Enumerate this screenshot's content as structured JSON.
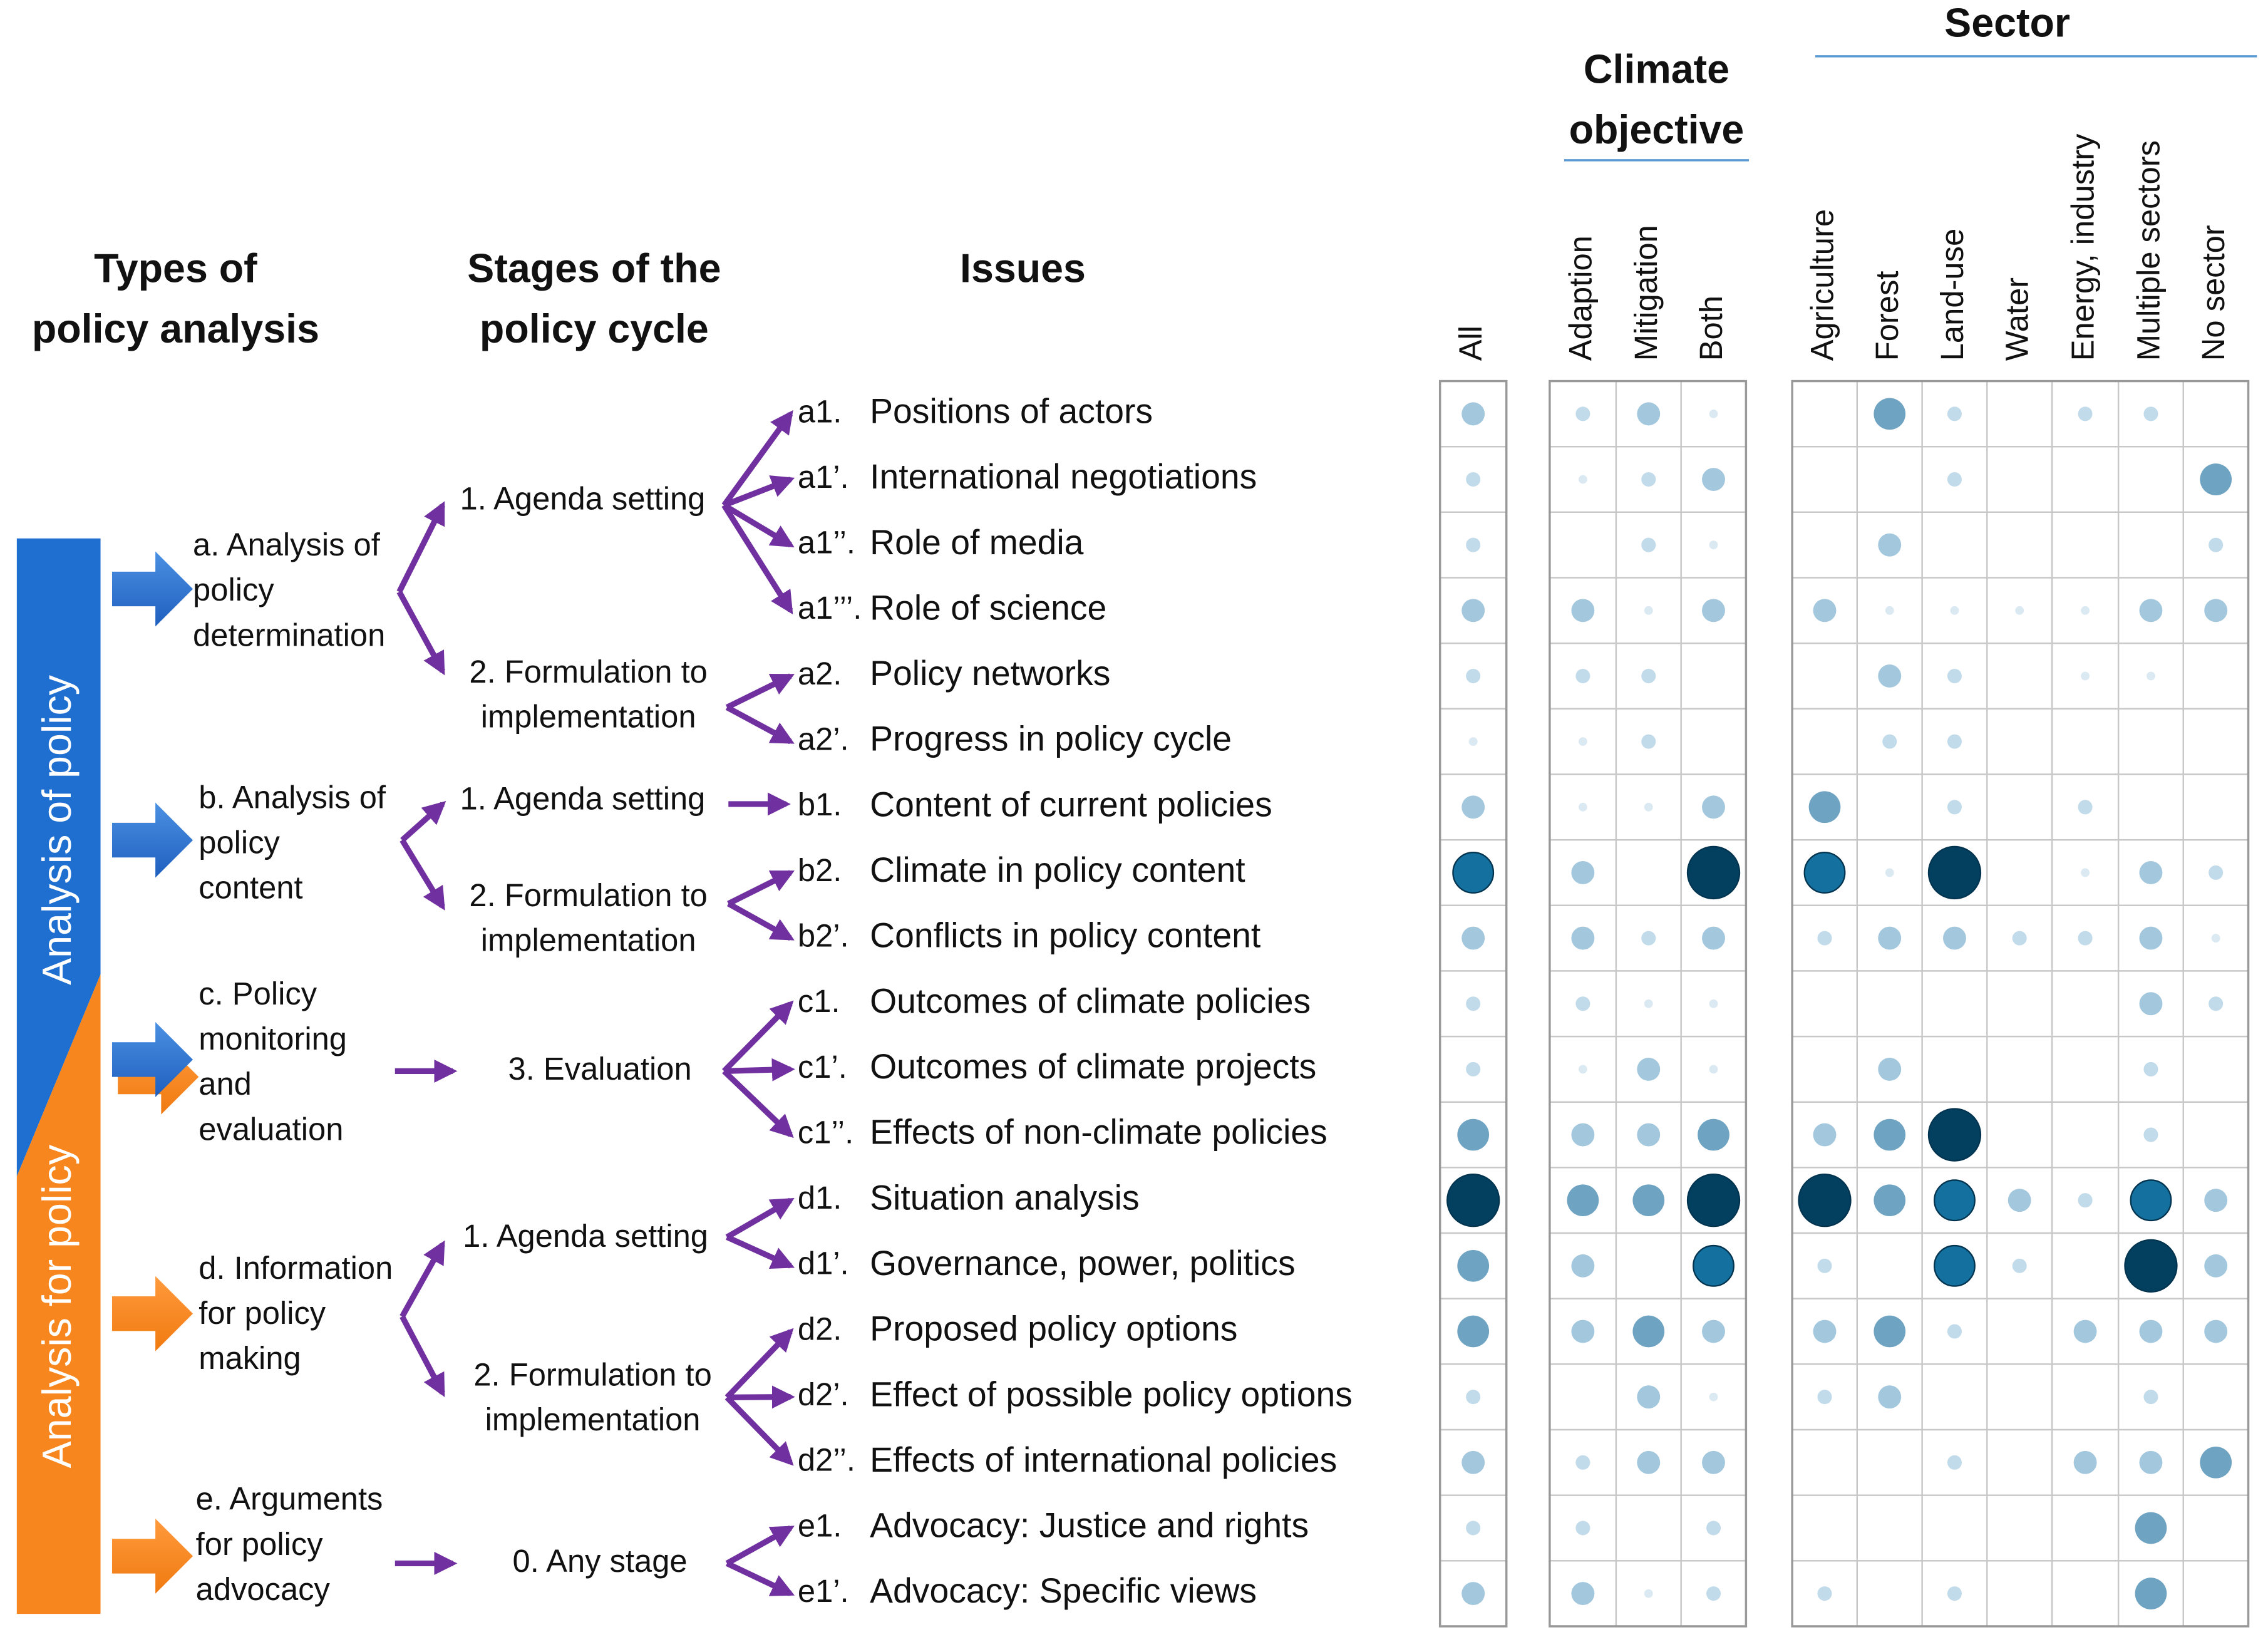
{
  "headers": {
    "types": [
      "Types of",
      "policy analysis"
    ],
    "stages": [
      "Stages of the",
      "policy cycle"
    ],
    "issues": "Issues",
    "climate": [
      "Climate",
      "objective"
    ],
    "sector": "Sector"
  },
  "side_bars": [
    "Analysis of policy",
    "Analysis for policy"
  ],
  "types": [
    {
      "lines": [
        "a. Analysis of",
        "policy",
        "determination"
      ]
    },
    {
      "lines": [
        "b. Analysis of",
        "policy",
        "content"
      ]
    },
    {
      "lines": [
        "c. Policy",
        "monitoring",
        "and",
        "evaluation"
      ]
    },
    {
      "lines": [
        "d. Information",
        "for policy",
        "making"
      ]
    },
    {
      "lines": [
        "e. Arguments",
        "for policy",
        "advocacy"
      ]
    }
  ],
  "stages": [
    {
      "lines": [
        "1. Agenda setting"
      ]
    },
    {
      "lines": [
        "2. Formulation to",
        "implementation"
      ]
    },
    {
      "lines": [
        "1. Agenda setting"
      ]
    },
    {
      "lines": [
        "2. Formulation to",
        "implementation"
      ]
    },
    {
      "lines": [
        "3. Evaluation"
      ]
    },
    {
      "lines": [
        "1. Agenda setting"
      ]
    },
    {
      "lines": [
        "2. Formulation to",
        "implementation"
      ]
    },
    {
      "lines": [
        "0. Any stage"
      ]
    }
  ],
  "issues": [
    {
      "code": "a1.",
      "label": "Positions of actors"
    },
    {
      "code": "a1’.",
      "label": "International negotiations"
    },
    {
      "code": "a1’’.",
      "label": "Role of media"
    },
    {
      "code": "a1’’’.",
      "label": "Role of science"
    },
    {
      "code": "a2.",
      "label": "Policy networks"
    },
    {
      "code": "a2’.",
      "label": "Progress in policy cycle"
    },
    {
      "code": "b1.",
      "label": "Content of current policies"
    },
    {
      "code": "b2.",
      "label": "Climate in policy content"
    },
    {
      "code": "b2’.",
      "label": "Conflicts in policy content"
    },
    {
      "code": "c1.",
      "label": "Outcomes of climate policies"
    },
    {
      "code": "c1’.",
      "label": "Outcomes of climate projects"
    },
    {
      "code": "c1’’.",
      "label": "Effects of non-climate policies"
    },
    {
      "code": "d1.",
      "label": "Situation analysis"
    },
    {
      "code": "d1’.",
      "label": "Governance, power, politics"
    },
    {
      "code": "d2.",
      "label": "Proposed policy options"
    },
    {
      "code": "d2’.",
      "label": "Effect of possible policy options"
    },
    {
      "code": "d2’’.",
      "label": "Effects of international policies"
    },
    {
      "code": "e1.",
      "label": "Advocacy: Justice and rights"
    },
    {
      "code": "e1’.",
      "label": "Advocacy: Specific views"
    }
  ],
  "matrix": {
    "columns": [
      "All",
      "Adaption",
      "Mitigation",
      "Both",
      "Agriculture",
      "Forest",
      "Land-use",
      "Water",
      "Energy, industry",
      "Multiple sectors",
      "No sector"
    ],
    "values": [
      [
        3,
        2,
        3,
        1,
        0,
        4,
        2,
        0,
        2,
        2,
        0
      ],
      [
        2,
        1,
        2,
        3,
        0,
        0,
        2,
        0,
        0,
        0,
        4
      ],
      [
        2,
        0,
        2,
        1,
        0,
        3,
        0,
        0,
        0,
        0,
        2
      ],
      [
        3,
        3,
        1,
        3,
        3,
        1,
        1,
        1,
        1,
        3,
        3
      ],
      [
        2,
        2,
        2,
        0,
        0,
        3,
        2,
        0,
        1,
        1,
        0
      ],
      [
        1,
        1,
        2,
        0,
        0,
        2,
        2,
        0,
        0,
        0,
        0
      ],
      [
        3,
        1,
        1,
        3,
        4,
        0,
        2,
        0,
        2,
        0,
        0
      ],
      [
        5,
        3,
        0,
        6,
        5,
        1,
        6,
        0,
        1,
        3,
        2
      ],
      [
        3,
        3,
        2,
        3,
        2,
        3,
        3,
        2,
        2,
        3,
        1
      ],
      [
        2,
        2,
        1,
        1,
        0,
        0,
        0,
        0,
        0,
        3,
        2
      ],
      [
        2,
        1,
        3,
        1,
        0,
        3,
        0,
        0,
        0,
        2,
        0
      ],
      [
        4,
        3,
        3,
        4,
        3,
        4,
        6,
        0,
        0,
        2,
        0
      ],
      [
        6,
        4,
        4,
        6,
        6,
        4,
        5,
        3,
        2,
        5,
        3
      ],
      [
        4,
        3,
        0,
        5,
        2,
        0,
        5,
        2,
        0,
        6,
        3
      ],
      [
        4,
        3,
        4,
        3,
        3,
        4,
        2,
        0,
        3,
        3,
        3
      ],
      [
        2,
        0,
        3,
        1,
        2,
        3,
        0,
        0,
        0,
        2,
        0
      ],
      [
        3,
        2,
        3,
        3,
        0,
        0,
        2,
        0,
        3,
        3,
        4
      ],
      [
        2,
        2,
        0,
        2,
        0,
        0,
        0,
        0,
        0,
        4,
        0
      ],
      [
        3,
        3,
        1,
        2,
        2,
        0,
        2,
        0,
        0,
        4,
        0
      ]
    ]
  }
}
